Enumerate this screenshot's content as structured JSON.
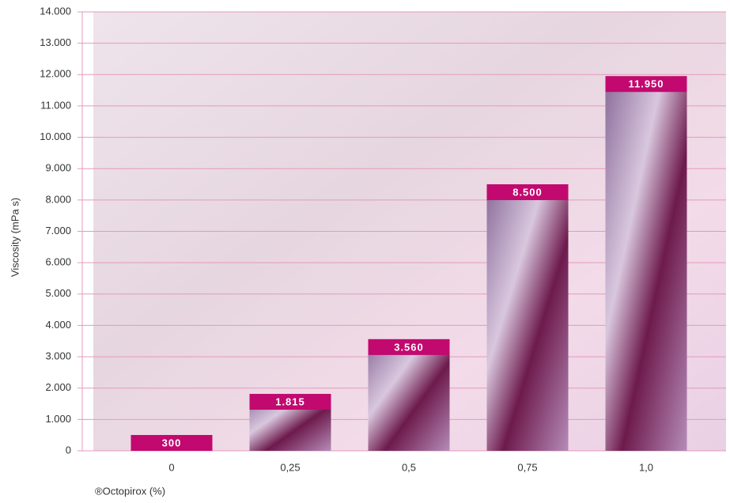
{
  "chart_data": {
    "type": "bar",
    "categories": [
      "0",
      "0,25",
      "0,5",
      "0,75",
      "1,0"
    ],
    "values": [
      300,
      1815,
      3560,
      8500,
      11950
    ],
    "value_labels": [
      "300",
      "1.815",
      "3.560",
      "8.500",
      "11.950"
    ],
    "y_label": "Viscosity (mPa s)",
    "x_label": "®Octopirox (%)",
    "color": "#c2096f",
    "ylim": [
      0,
      14000
    ],
    "yticks": [
      0,
      {
        "value": 1000,
        "label": "1.000"
      },
      {
        "value": 2000,
        "label": "2.000"
      },
      {
        "value": 3000,
        "label": "3.000"
      },
      {
        "value": 4000,
        "label": "4.000"
      },
      {
        "value": 5000,
        "label": "5.000"
      },
      {
        "value": 6000,
        "label": "6.000"
      },
      {
        "value": 7000,
        "label": "7.000"
      },
      {
        "value": 8000,
        "label": "8.000"
      },
      {
        "value": 9000,
        "label": "9.000"
      },
      {
        "value": 10000,
        "label": "10.000"
      },
      {
        "value": 11000,
        "label": "11.000"
      },
      {
        "value": 12000,
        "label": "12.000"
      },
      {
        "value": 13000,
        "label": "13.000"
      },
      {
        "value": 14000,
        "label": "14.000"
      }
    ],
    "grid": true
  }
}
